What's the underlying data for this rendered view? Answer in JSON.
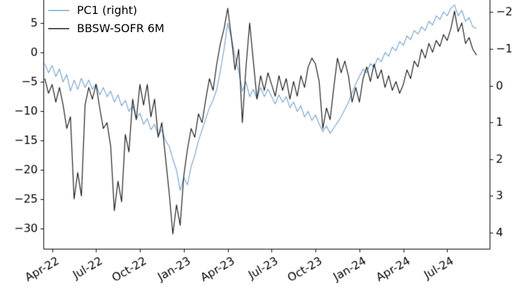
{
  "chart_data": {
    "type": "line",
    "title": "",
    "xlabel": "",
    "ylabel_left": "",
    "ylabel_right": "",
    "grid": false,
    "x_axis": {
      "unit": "months-from-Apr-2022",
      "xlim": [
        -0.6,
        29.9
      ],
      "tick_positions": [
        0,
        3,
        6,
        9,
        12,
        15,
        18,
        21,
        24,
        27
      ],
      "tick_labels": [
        "Apr-22",
        "Jul-22",
        "Oct-22",
        "Jan-23",
        "Apr-23",
        "Jul-23",
        "Oct-23",
        "Jan-24",
        "Apr-24",
        "Jul-24"
      ]
    },
    "y_axis_left": {
      "ylim": [
        -33.5,
        8.9
      ],
      "tick_positions": [
        5,
        0,
        -5,
        -10,
        -15,
        -20,
        -25,
        -30
      ],
      "tick_labels": [
        "5",
        "0",
        "−5",
        "−10",
        "−15",
        "−20",
        "−25",
        "−30"
      ]
    },
    "y_axis_right": {
      "inverted": true,
      "ylim": [
        -2.33,
        4.44
      ],
      "tick_positions": [
        -2,
        -1,
        0,
        1,
        2,
        3,
        4
      ],
      "tick_labels": [
        "−2",
        "−1",
        "0",
        "1",
        "2",
        "3",
        "4"
      ]
    },
    "legend": {
      "position": "upper-left",
      "frame": false
    },
    "series": [
      {
        "name": "PC1 (right)",
        "axis": "right",
        "color": "#7aa5d2",
        "line_width": 1.2,
        "x_start": -0.5,
        "x_step": 0.25,
        "values": [
          -0.6,
          -0.35,
          -0.55,
          -0.25,
          -0.45,
          -0.1,
          -0.3,
          0.15,
          -0.15,
          0.1,
          -0.2,
          0.05,
          -0.15,
          0.1,
          -0.05,
          0.25,
          0.05,
          0.3,
          0.15,
          0.45,
          0.25,
          0.55,
          0.4,
          0.7,
          0.55,
          0.9,
          0.75,
          1.05,
          0.9,
          1.2,
          1.05,
          1.35,
          1.2,
          1.5,
          1.65,
          2.0,
          2.3,
          2.85,
          2.5,
          2.7,
          2.2,
          1.9,
          1.5,
          1.2,
          0.9,
          0.6,
          0.4,
          0.1,
          -0.4,
          -1.0,
          -1.7,
          -1.3,
          -0.8,
          -0.4,
          0.15,
          -0.1,
          0.3,
          0.1,
          0.35,
          0.05,
          0.3,
          0.1,
          0.3,
          0.5,
          0.25,
          0.45,
          0.3,
          0.6,
          0.45,
          0.7,
          0.55,
          0.85,
          0.7,
          0.95,
          0.8,
          1.05,
          1.25,
          1.1,
          1.3,
          1.15,
          1.0,
          0.85,
          0.65,
          0.45,
          0.2,
          -0.05,
          -0.25,
          -0.45,
          -0.35,
          -0.6,
          -0.5,
          -0.75,
          -0.65,
          -0.9,
          -0.8,
          -1.05,
          -0.95,
          -1.2,
          -1.1,
          -1.35,
          -1.25,
          -1.5,
          -1.4,
          -1.6,
          -1.5,
          -1.75,
          -1.65,
          -1.9,
          -1.8,
          -2.0,
          -1.9,
          -2.1,
          -2.2,
          -1.9,
          -2.05,
          -1.75,
          -1.85,
          -1.6,
          -1.55
        ]
      },
      {
        "name": "BBSW-SOFR 6M",
        "axis": "left",
        "color": "#1c1c1c",
        "line_width": 1.2,
        "x_start": -0.5,
        "x_step": 0.25,
        "values": [
          -4.5,
          -7,
          -5.5,
          -8.5,
          -6,
          -9,
          -13,
          -11,
          -25,
          -20.5,
          -24.5,
          -9,
          -6,
          -8,
          -5.5,
          -9.5,
          -13,
          -12,
          -16,
          -27,
          -22,
          -25.5,
          -14,
          -17,
          -8,
          -11.5,
          -5.5,
          -9,
          -5.5,
          -11,
          -8,
          -14.5,
          -12,
          -18,
          -24,
          -31,
          -26,
          -29.5,
          -21,
          -16.5,
          -13,
          -14.5,
          -10.5,
          -12,
          -8,
          -4.5,
          -6.5,
          -2,
          1.5,
          4,
          7.5,
          2.5,
          -3,
          0.5,
          -12,
          -2.5,
          5,
          -1.5,
          -8,
          -4,
          -6.5,
          -3.5,
          -5.5,
          -7.5,
          -4,
          -6.5,
          -4.5,
          -8,
          -5,
          -7.5,
          -4,
          -6,
          -2.5,
          -1,
          -2,
          -5,
          -13,
          -9.5,
          -11.5,
          -6,
          -1,
          -3.5,
          -1.5,
          -4,
          -8.5,
          -6,
          -8.5,
          -4.5,
          -2.5,
          -5,
          -2,
          -4.5,
          -3,
          -6,
          -4,
          -6.5,
          -5,
          -7,
          -5.5,
          -3,
          -4.5,
          -1.5,
          -2.5,
          0.5,
          -1,
          1.5,
          0,
          2,
          1,
          3,
          2,
          4,
          7,
          3.5,
          5,
          1.5,
          2.5,
          0.5,
          -0.5
        ]
      }
    ]
  }
}
